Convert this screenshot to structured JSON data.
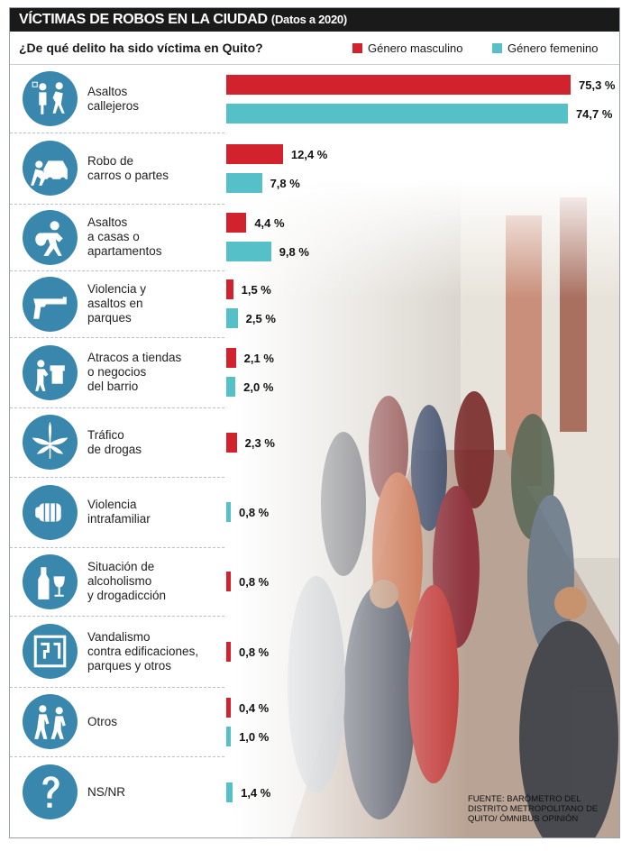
{
  "header": {
    "title": "VÍCTIMAS DE ROBOS EN LA CIUDAD",
    "subtitle": "(Datos a 2020)",
    "question": "¿De qué delito ha sido víctima en Quito?"
  },
  "legend": {
    "male_label": "Género masculino",
    "female_label": "Género femenino",
    "male_color": "#d2222d",
    "female_color": "#55c0c8"
  },
  "source": "FUENTE: BARÓMETRO DEL DISTRITO METROPOLITANO DE QUITO/ ÓMNIBUS OPINIÓN",
  "chart_data": {
    "type": "bar",
    "orientation": "horizontal",
    "categories": [
      {
        "label": "Asaltos\ncallejeros",
        "icon": "street-robbery-icon"
      },
      {
        "label": "Robo de\ncarros o partes",
        "icon": "car-theft-icon"
      },
      {
        "label": "Asaltos\na casas o\napartamentos",
        "icon": "burglar-icon"
      },
      {
        "label": "Violencia y\nasaltos en\nparques",
        "icon": "gun-icon"
      },
      {
        "label": "Atracos a tiendas\no negocios\ndel barrio",
        "icon": "shop-robbery-icon"
      },
      {
        "label": "Tráfico\nde drogas",
        "icon": "cannabis-leaf-icon"
      },
      {
        "label": "Violencia\nintrafamiliar",
        "icon": "fist-icon"
      },
      {
        "label": "Situación de\nalcoholismo\ny drogadicción",
        "icon": "bottle-glass-icon"
      },
      {
        "label": "Vandalismo\ncontra edificaciones,\nparques y otros",
        "icon": "graffiti-wall-icon"
      },
      {
        "label": "Otros",
        "icon": "people-icon"
      },
      {
        "label": "NS/NR",
        "icon": "question-mark-icon"
      }
    ],
    "series": [
      {
        "name": "Género masculino",
        "color": "#d2222d",
        "values": [
          75.3,
          12.4,
          4.4,
          1.5,
          2.1,
          2.3,
          null,
          0.8,
          0.8,
          0.4,
          null
        ],
        "labels": [
          "75,3 %",
          "12,4 %",
          "4,4 %",
          "1,5 %",
          "2,1 %",
          "2,3 %",
          null,
          "0,8 %",
          "0,8 %",
          "0,4 %",
          null
        ]
      },
      {
        "name": "Género femenino",
        "color": "#55c0c8",
        "values": [
          74.7,
          7.8,
          9.8,
          2.5,
          2.0,
          null,
          0.8,
          null,
          null,
          1.0,
          1.4
        ],
        "labels": [
          "74,7 %",
          "7,8 %",
          "9,8 %",
          "2,5 %",
          "2,0 %",
          null,
          "0,8 %",
          null,
          null,
          "1,0 %",
          "1,4 %"
        ]
      }
    ]
  }
}
